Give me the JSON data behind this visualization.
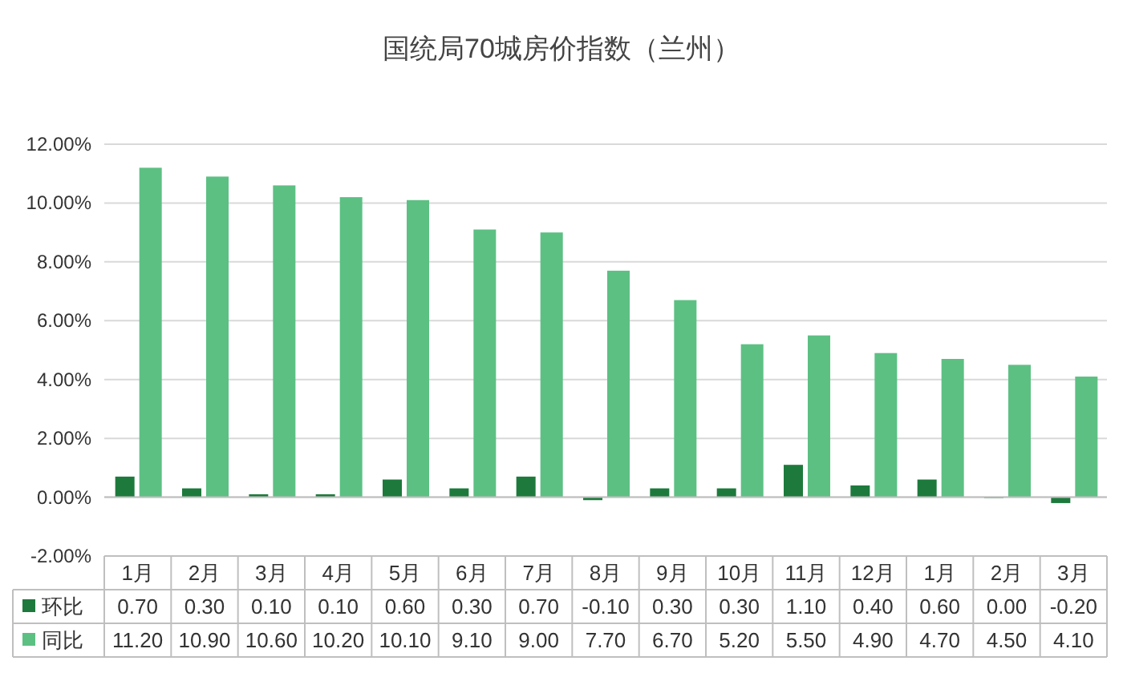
{
  "chart_data": {
    "type": "bar",
    "title": "国统局70城房价指数（兰州）",
    "categories": [
      "1月",
      "2月",
      "3月",
      "4月",
      "5月",
      "6月",
      "7月",
      "8月",
      "9月",
      "10月",
      "11月",
      "12月",
      "1月",
      "2月",
      "3月"
    ],
    "series": [
      {
        "name": "环比",
        "color": "#1d7a3c",
        "values": [
          0.7,
          0.3,
          0.1,
          0.1,
          0.6,
          0.3,
          0.7,
          -0.1,
          0.3,
          0.3,
          1.1,
          0.4,
          0.6,
          0.0,
          -0.2
        ],
        "value_labels": [
          "0.70",
          "0.30",
          "0.10",
          "0.10",
          "0.60",
          "0.30",
          "0.70",
          "-0.10",
          "0.30",
          "0.30",
          "1.10",
          "0.40",
          "0.60",
          "0.00",
          "-0.20"
        ]
      },
      {
        "name": "同比",
        "color": "#5cc083",
        "values": [
          11.2,
          10.9,
          10.6,
          10.2,
          10.1,
          9.1,
          9.0,
          7.7,
          6.7,
          5.2,
          5.5,
          4.9,
          4.7,
          4.5,
          4.1
        ],
        "value_labels": [
          "11.20",
          "10.90",
          "10.60",
          "10.20",
          "10.10",
          "9.10",
          "9.00",
          "7.70",
          "6.70",
          "5.20",
          "5.50",
          "4.90",
          "4.70",
          "4.50",
          "4.10"
        ]
      }
    ],
    "ylim": [
      -2,
      12
    ],
    "yticks": [
      {
        "value": -2,
        "label": "-2.00%"
      },
      {
        "value": 0,
        "label": "0.00%"
      },
      {
        "value": 2,
        "label": "2.00%"
      },
      {
        "value": 4,
        "label": "4.00%"
      },
      {
        "value": 6,
        "label": "6.00%"
      },
      {
        "value": 8,
        "label": "8.00%"
      },
      {
        "value": 10,
        "label": "10.00%"
      },
      {
        "value": 12,
        "label": "12.00%"
      }
    ],
    "grid": "y",
    "legend": "bottom"
  }
}
